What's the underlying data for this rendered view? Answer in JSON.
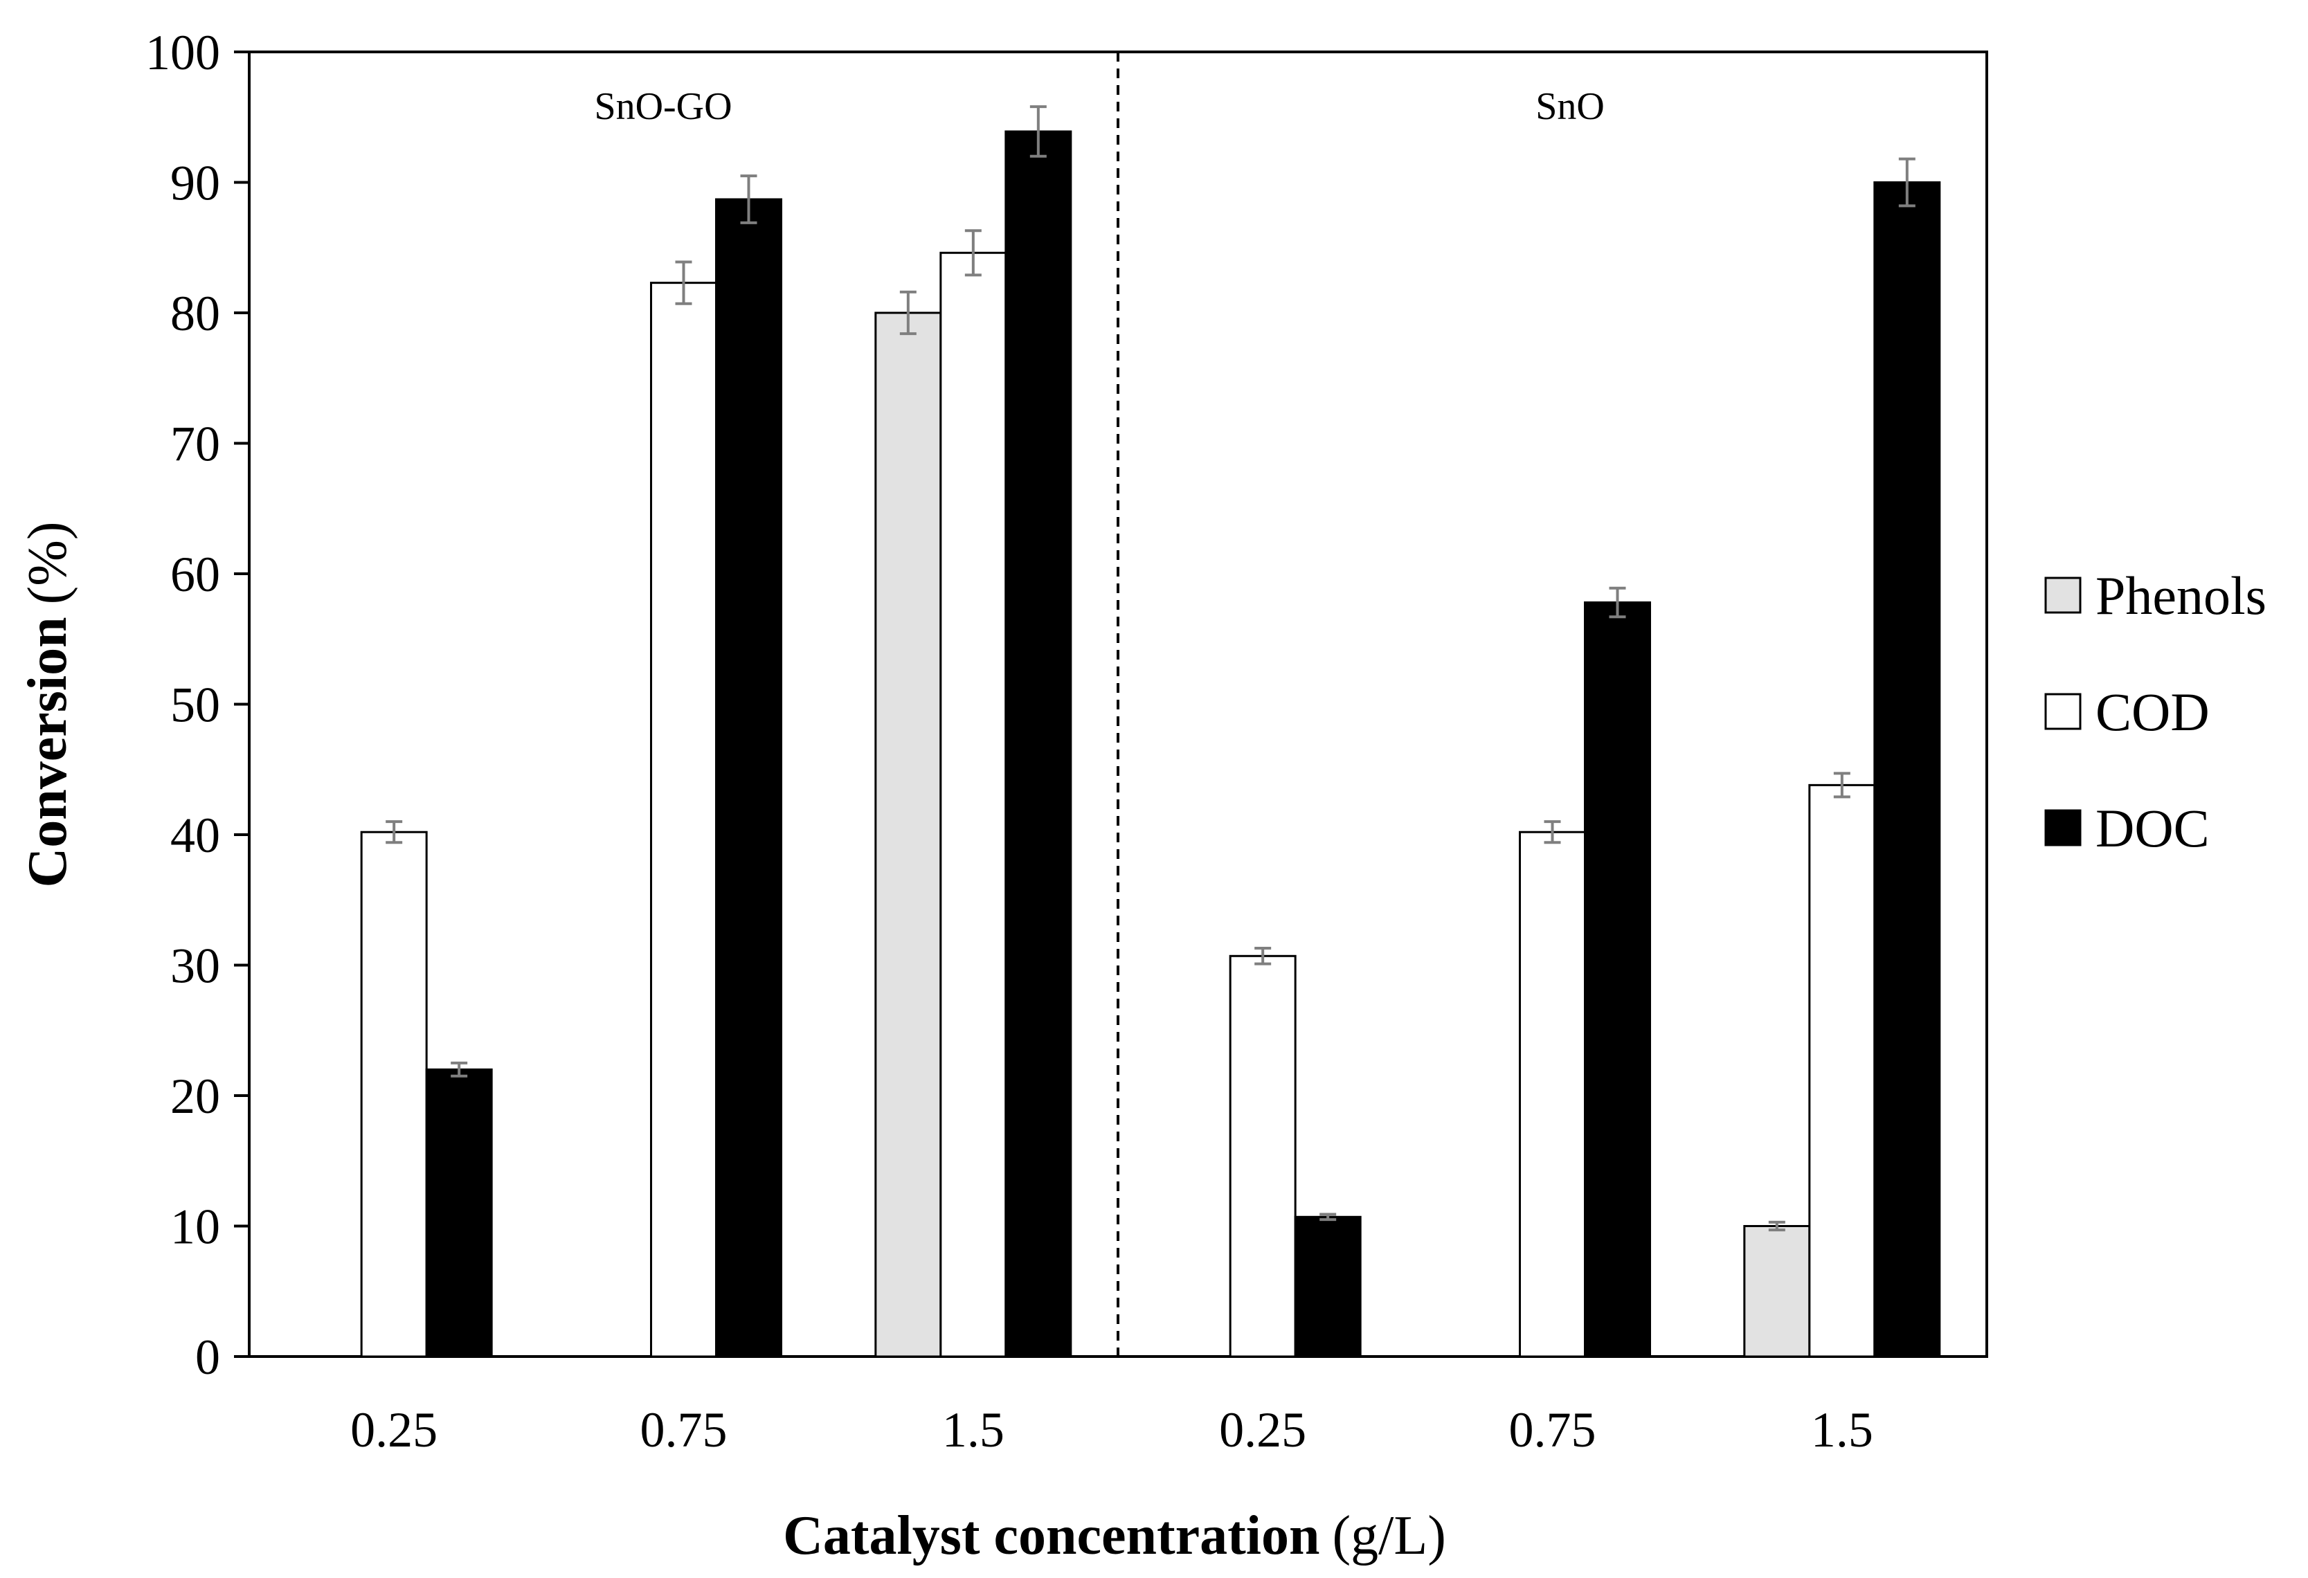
{
  "chart_data": {
    "type": "bar",
    "title": "",
    "xlabel_bold": "Catalyst concentration",
    "xlabel_unit": "(g/L)",
    "ylabel_bold": "Conversion",
    "ylabel_unit": "(%)",
    "ylim": [
      0,
      100
    ],
    "yticks": [
      0,
      10,
      20,
      30,
      40,
      50,
      60,
      70,
      80,
      90,
      100
    ],
    "ytick_labels": [
      "0",
      "10",
      "20",
      "30",
      "40",
      "50",
      "60",
      "70",
      "80",
      "90",
      "100"
    ],
    "groups": [
      "SnO-GO",
      "SnO"
    ],
    "categories": [
      "0.25",
      "0.75",
      "1.5",
      "0.25",
      "0.75",
      "1.5"
    ],
    "series": [
      {
        "name": "Phenols",
        "color": "#e2e2e2",
        "values": [
          null,
          null,
          80.0,
          null,
          null,
          10.0
        ],
        "errors": [
          null,
          null,
          1.6,
          null,
          null,
          0.3
        ]
      },
      {
        "name": "COD",
        "color": "#ffffff",
        "values": [
          40.2,
          82.3,
          84.6,
          30.7,
          40.2,
          43.8
        ],
        "errors": [
          0.8,
          1.6,
          1.7,
          0.6,
          0.8,
          0.9
        ]
      },
      {
        "name": "DOC",
        "color": "#000000",
        "values": [
          22.0,
          88.7,
          93.9,
          10.7,
          57.8,
          90.0
        ],
        "errors": [
          0.5,
          1.8,
          1.9,
          0.2,
          1.1,
          1.8
        ]
      }
    ],
    "legend_position": "right",
    "grid": false
  }
}
